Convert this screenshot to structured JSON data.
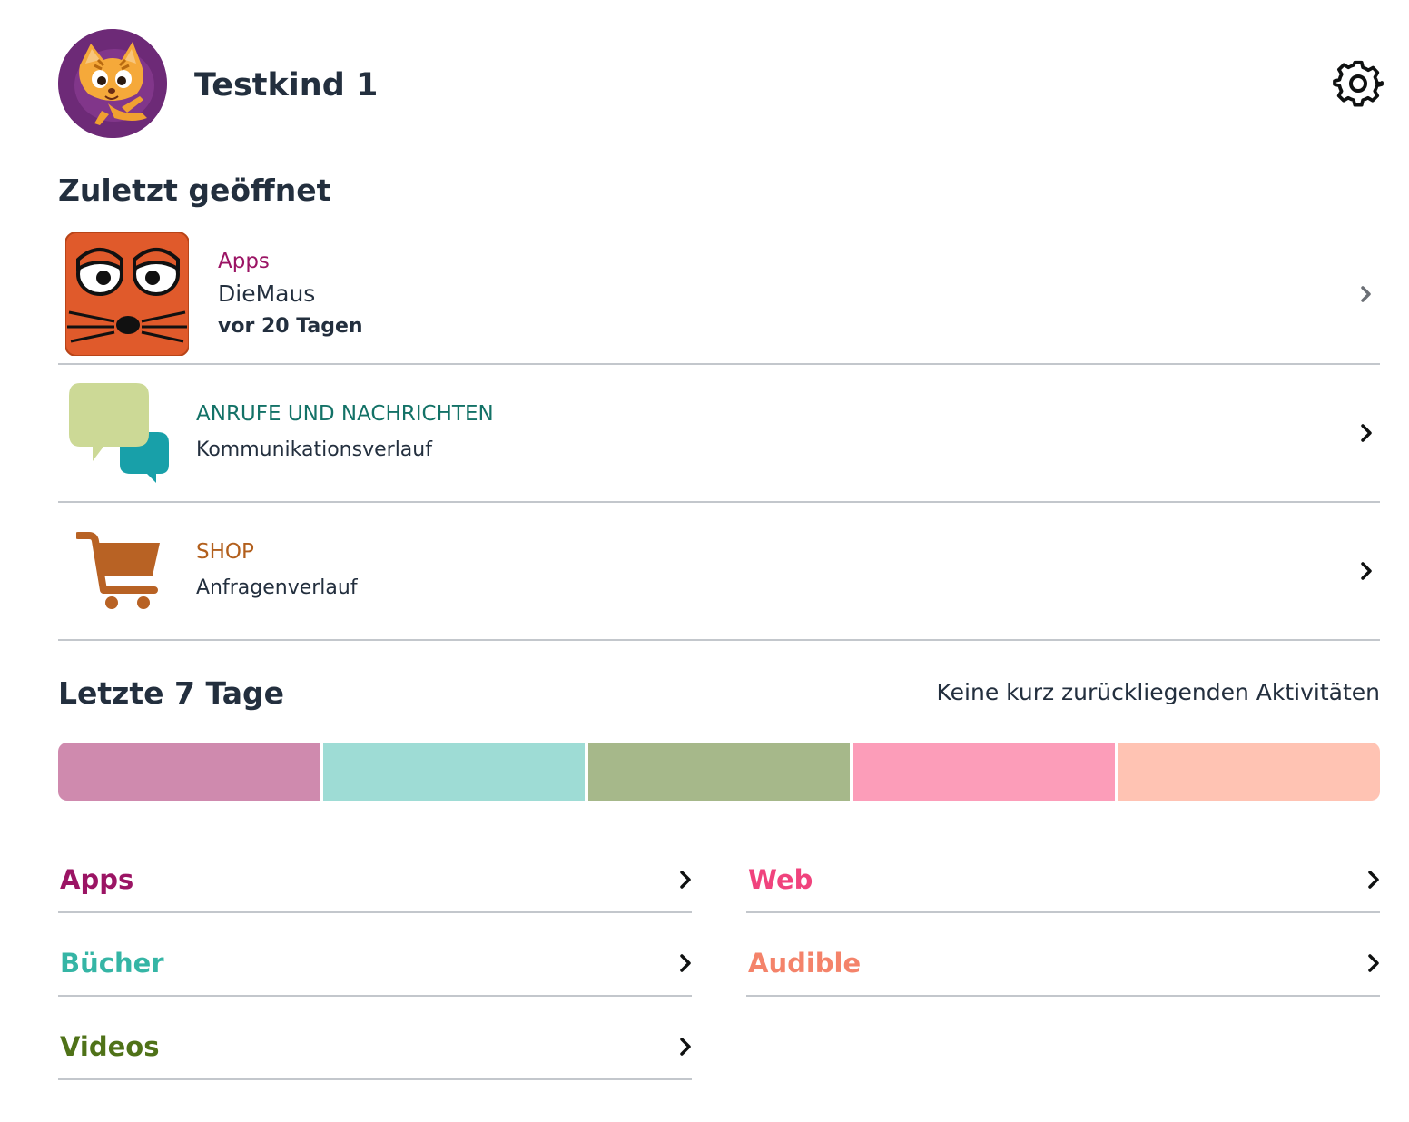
{
  "profile": {
    "name": "Testkind 1"
  },
  "icons": {
    "settings": "gear-icon",
    "chevron": "chevron-right-icon",
    "avatar": "cat-avatar",
    "app_tile": "die-maus-app-icon",
    "communication": "speech-bubbles-icon",
    "shop": "shopping-cart-icon"
  },
  "recent": {
    "title": "Zuletzt geöffnet",
    "items": [
      {
        "category": "Apps",
        "category_color": "#9b1464",
        "name": "DieMaus",
        "meta": "vor 20 Tagen"
      },
      {
        "category": "ANRUFE UND NACHRICHTEN",
        "category_color": "#137267",
        "name": "Kommunikationsverlauf"
      },
      {
        "category": "SHOP",
        "category_color": "#b25f1c",
        "name": "Anfragenverlauf"
      }
    ]
  },
  "last7": {
    "title": "Letzte 7 Tage",
    "status": "Keine kurz zurückliegenden Aktivitäten",
    "bar_colors": [
      "#cf8aae",
      "#9edcd5",
      "#a6b88a",
      "#fc9db9",
      "#ffc3b3"
    ]
  },
  "categories": [
    {
      "label": "Apps",
      "color": "#9b1464"
    },
    {
      "label": "Web",
      "color": "#f0437d"
    },
    {
      "label": "Bücher",
      "color": "#35b5a5"
    },
    {
      "label": "Audible",
      "color": "#f4836a"
    },
    {
      "label": "Videos",
      "color": "#4f7218"
    }
  ]
}
